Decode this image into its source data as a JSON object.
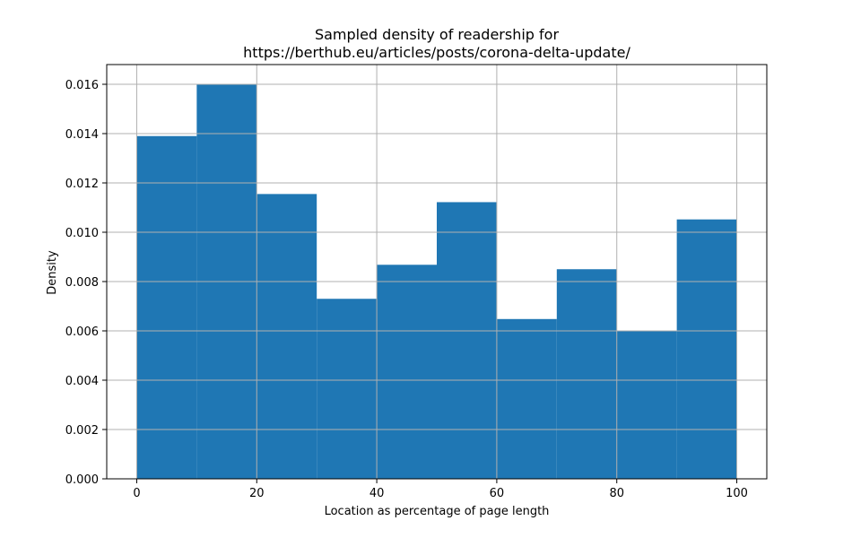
{
  "chart_data": {
    "type": "bar",
    "title_lines": [
      "Sampled density of readership for",
      "https://berthub.eu/articles/posts/corona-delta-update/"
    ],
    "xlabel": "Location as percentage of page length",
    "ylabel": "Density",
    "bin_edges": [
      0,
      10,
      20,
      30,
      40,
      50,
      60,
      70,
      80,
      90,
      100
    ],
    "values": [
      0.0139,
      0.016,
      0.01155,
      0.0073,
      0.00868,
      0.01122,
      0.00648,
      0.0085,
      0.006,
      0.01052
    ],
    "xlim": [
      -5,
      105
    ],
    "ylim": [
      0,
      0.0168
    ],
    "xticks": [
      0,
      20,
      40,
      60,
      80,
      100
    ],
    "xtick_labels": [
      "0",
      "20",
      "40",
      "60",
      "80",
      "100"
    ],
    "yticks": [
      0,
      0.002,
      0.004,
      0.006,
      0.008,
      0.01,
      0.012,
      0.014,
      0.016
    ],
    "ytick_labels": [
      "0.000",
      "0.002",
      "0.004",
      "0.006",
      "0.008",
      "0.010",
      "0.012",
      "0.014",
      "0.016"
    ],
    "grid": true,
    "colors": {
      "bar": "#1f77b4",
      "grid": "#b0b0b0",
      "axis": "#000000"
    }
  }
}
